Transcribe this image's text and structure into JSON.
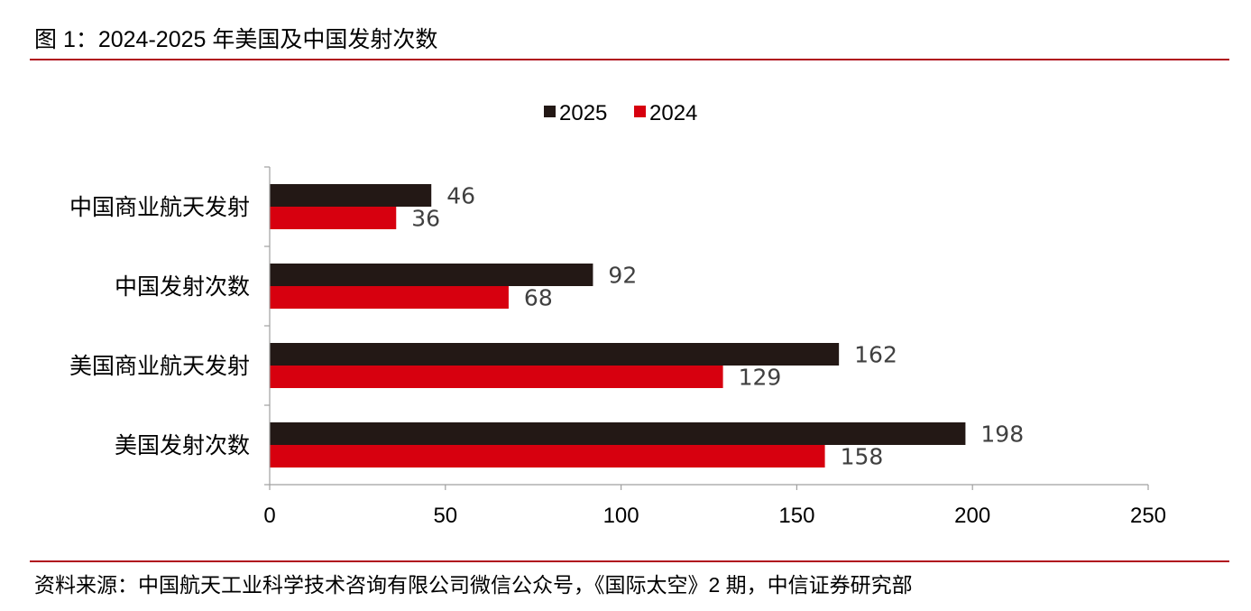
{
  "figure": {
    "title": "图 1：2024-2025 年美国及中国发射次数",
    "source": "资料来源：中国航天工业科学技术咨询有限公司微信公众号，《国际太空》2 期，中信证券研究部"
  },
  "colors": {
    "rule": "#b00e1d",
    "series_2025": "#231815",
    "series_2024": "#d7000f",
    "axis": "#a0a0a0"
  },
  "chart_data": {
    "type": "bar",
    "orientation": "horizontal",
    "categories": [
      "中国商业航天发射",
      "中国发射次数",
      "美国商业航天发射",
      "美国发射次数"
    ],
    "series": [
      {
        "name": "2025",
        "values": [
          46,
          92,
          162,
          198
        ]
      },
      {
        "name": "2024",
        "values": [
          36,
          68,
          129,
          158
        ]
      }
    ],
    "xlim": [
      0,
      250
    ],
    "xticks": [
      0,
      50,
      100,
      150,
      200,
      250
    ],
    "xlabel": "",
    "ylabel": "",
    "legend": "top-center",
    "grid": false
  }
}
